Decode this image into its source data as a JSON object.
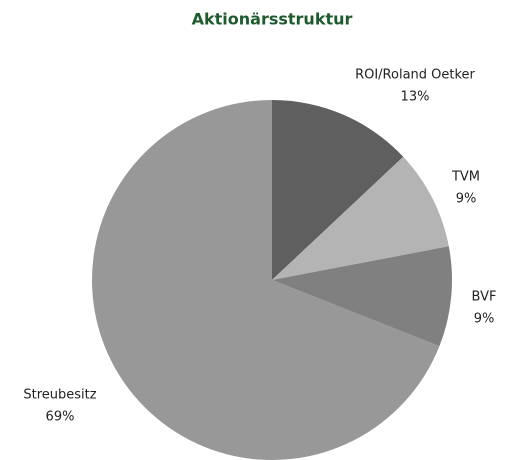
{
  "chart_data": {
    "type": "pie",
    "title": "Aktionärsstruktur",
    "categories": [
      "ROI/Roland Oetker",
      "TVM",
      "BVF",
      "Streubesitz"
    ],
    "values": [
      13,
      9,
      9,
      69
    ],
    "value_labels": [
      "13%",
      "9%",
      "9%",
      "69%"
    ],
    "colors": [
      "#5f5f5f",
      "#b4b4b4",
      "#808080",
      "#989898"
    ]
  }
}
